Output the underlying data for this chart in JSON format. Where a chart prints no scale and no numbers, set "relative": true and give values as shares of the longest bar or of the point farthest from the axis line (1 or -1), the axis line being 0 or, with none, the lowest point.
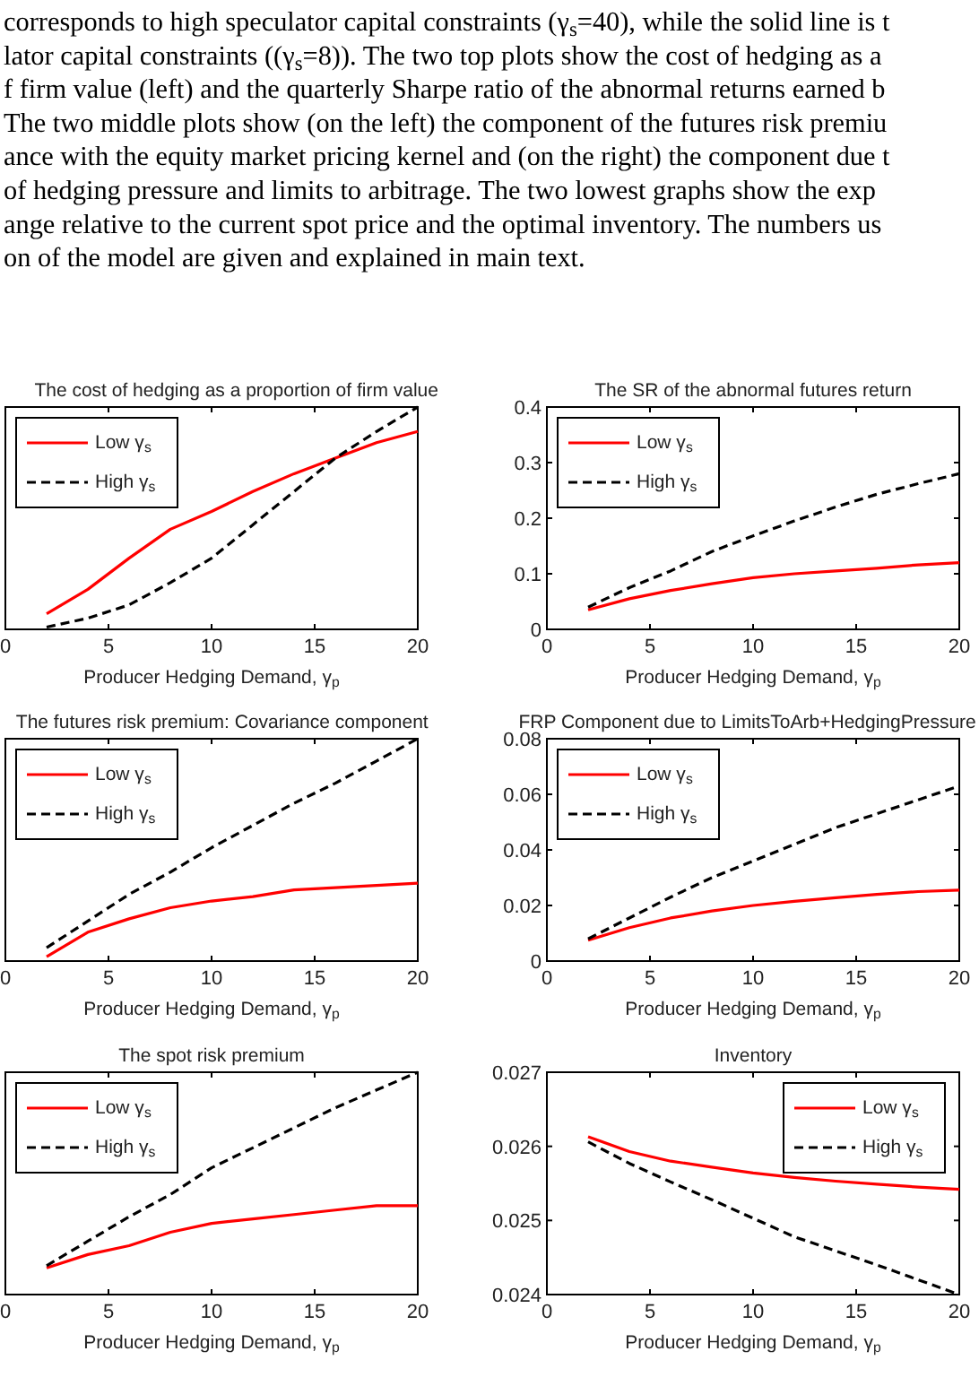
{
  "chart_data": [
    {
      "type": "line",
      "title": "The cost of hedging as a proportion of firm value",
      "xlabel": "Producer Hedging Demand, γ$_{p}$",
      "relative": true,
      "x": [
        2,
        4,
        6,
        8,
        10,
        12,
        14,
        16,
        18,
        20
      ],
      "xlim": [
        0,
        20
      ],
      "xticks": [
        0,
        5,
        10,
        15,
        20
      ],
      "grid": false,
      "legend": "top left",
      "marker": "none",
      "annotations": [
        "corresponds to high speculator capital constraints (γ$_{s}$=40), while the solid line is t",
        "lator capital constraints ((γ$_{s}$=8)). The two top plots show the cost of hedging as a",
        "f firm value (left) and the quarterly Sharpe ratio of the abnormal returns earned b",
        "The two middle plots show (on the left) the component of the futures risk premiu",
        "ance with the equity market pricing kernel and (on the right) the component due t",
        "of hedging pressure and limits to arbitrage. The two lowest graphs show the exp",
        "ange relative to the current spot price and the optimal inventory. The numbers us",
        "on of the model are given and explained in main text."
      ],
      "series": [
        {
          "name": "Low γ$_{s}$",
          "color": "#ff0000",
          "line_style": "solid",
          "values": [
            0.07,
            0.18,
            0.32,
            0.45,
            0.53,
            0.62,
            0.7,
            0.77,
            0.84,
            0.89
          ]
        },
        {
          "name": "High γ$_{s}$",
          "color": "#000000",
          "line_style": "dashed",
          "values": [
            0.01,
            0.05,
            0.11,
            0.21,
            0.32,
            0.47,
            0.62,
            0.77,
            0.89,
            1
          ]
        }
      ]
    },
    {
      "type": "line",
      "title": "The SR of the abnormal futures return",
      "xlabel": "Producer Hedging Demand, γ$_{p}$",
      "x": [
        2,
        4,
        6,
        8,
        10,
        12,
        14,
        16,
        18,
        20
      ],
      "xlim": [
        0,
        20
      ],
      "xticks": [
        0,
        5,
        10,
        15,
        20
      ],
      "ylim": [
        0,
        0.4
      ],
      "yticks": [
        0,
        0.1,
        0.2,
        0.3,
        0.4
      ],
      "grid": false,
      "legend": "top left",
      "marker": "none",
      "series": [
        {
          "name": "Low γ$_{s}$",
          "color": "#ff0000",
          "line_style": "solid",
          "values": [
            0.035,
            0.055,
            0.07,
            0.082,
            0.093,
            0.1,
            0.105,
            0.11,
            0.116,
            0.12
          ]
        },
        {
          "name": "High γ$_{s}$",
          "color": "#000000",
          "line_style": "dashed",
          "values": [
            0.04,
            0.075,
            0.105,
            0.14,
            0.168,
            0.195,
            0.22,
            0.243,
            0.262,
            0.28
          ]
        }
      ]
    },
    {
      "type": "line",
      "title": "The futures risk premium: Covariance component",
      "xlabel": "Producer Hedging Demand, γ$_{p}$",
      "relative": true,
      "x": [
        2,
        4,
        6,
        8,
        10,
        12,
        14,
        16,
        18,
        20
      ],
      "xlim": [
        0,
        20
      ],
      "xticks": [
        0,
        5,
        10,
        15,
        20
      ],
      "grid": false,
      "legend": "top left",
      "marker": "none",
      "series": [
        {
          "name": "Low γ$_{s}$",
          "color": "#ff0000",
          "line_style": "solid",
          "values": [
            0.02,
            0.13,
            0.19,
            0.24,
            0.27,
            0.29,
            0.32,
            0.33,
            0.34,
            0.35
          ]
        },
        {
          "name": "High γ$_{s}$",
          "color": "#000000",
          "line_style": "dashed",
          "values": [
            0.06,
            0.18,
            0.3,
            0.4,
            0.51,
            0.61,
            0.71,
            0.8,
            0.9,
            1
          ]
        }
      ]
    },
    {
      "type": "line",
      "title": "FRP Component due to LimitsToArb+HedgingPressure",
      "xlabel": "Producer Hedging Demand, γ$_{p}$",
      "x": [
        2,
        4,
        6,
        8,
        10,
        12,
        14,
        16,
        18,
        20
      ],
      "xlim": [
        0,
        20
      ],
      "xticks": [
        0,
        5,
        10,
        15,
        20
      ],
      "ylim": [
        0,
        0.08
      ],
      "yticks": [
        0,
        0.02,
        0.04,
        0.06,
        0.08
      ],
      "grid": false,
      "legend": "top left",
      "marker": "none",
      "series": [
        {
          "name": "Low γ$_{s}$",
          "color": "#ff0000",
          "line_style": "solid",
          "values": [
            0.0075,
            0.012,
            0.0155,
            0.018,
            0.02,
            0.0215,
            0.0228,
            0.024,
            0.025,
            0.0255
          ]
        },
        {
          "name": "High γ$_{s}$",
          "color": "#000000",
          "line_style": "dashed",
          "values": [
            0.008,
            0.0155,
            0.023,
            0.03,
            0.036,
            0.042,
            0.048,
            0.053,
            0.058,
            0.063
          ]
        }
      ]
    },
    {
      "type": "line",
      "title": "The spot risk premium",
      "xlabel": "Producer Hedging Demand, γ$_{p}$",
      "relative": true,
      "x": [
        2,
        4,
        6,
        8,
        10,
        12,
        14,
        16,
        18,
        20
      ],
      "xlim": [
        0,
        20
      ],
      "xticks": [
        0,
        5,
        10,
        15,
        20
      ],
      "grid": false,
      "legend": "top left",
      "marker": "none",
      "series": [
        {
          "name": "Low γ$_{s}$",
          "color": "#ff0000",
          "line_style": "solid",
          "values": [
            0.12,
            0.18,
            0.22,
            0.28,
            0.32,
            0.34,
            0.36,
            0.38,
            0.4,
            0.4
          ]
        },
        {
          "name": "High γ$_{s}$",
          "color": "#000000",
          "line_style": "dashed",
          "values": [
            0.13,
            0.24,
            0.35,
            0.45,
            0.57,
            0.66,
            0.75,
            0.84,
            0.92,
            1
          ]
        }
      ]
    },
    {
      "type": "line",
      "title": "Inventory",
      "xlabel": "Producer Hedging Demand, γ$_{p}$",
      "x": [
        2,
        4,
        6,
        8,
        10,
        12,
        14,
        16,
        18,
        20
      ],
      "xlim": [
        0,
        20
      ],
      "xticks": [
        0,
        5,
        10,
        15,
        20
      ],
      "ylim": [
        0.024,
        0.027
      ],
      "yticks": [
        0.024,
        0.025,
        0.026,
        0.027
      ],
      "grid": false,
      "legend": "top right",
      "marker": "none",
      "series": [
        {
          "name": "Low γ$_{s}$",
          "color": "#ff0000",
          "line_style": "solid",
          "values": [
            0.02613,
            0.02593,
            0.0258,
            0.02572,
            0.02564,
            0.02558,
            0.02553,
            0.02549,
            0.02545,
            0.02542
          ]
        },
        {
          "name": "High γ$_{s}$",
          "color": "#000000",
          "line_style": "dashed",
          "values": [
            0.02606,
            0.02577,
            0.02552,
            0.02528,
            0.02503,
            0.02478,
            0.02459,
            0.0244,
            0.0242,
            0.024
          ]
        }
      ]
    }
  ]
}
